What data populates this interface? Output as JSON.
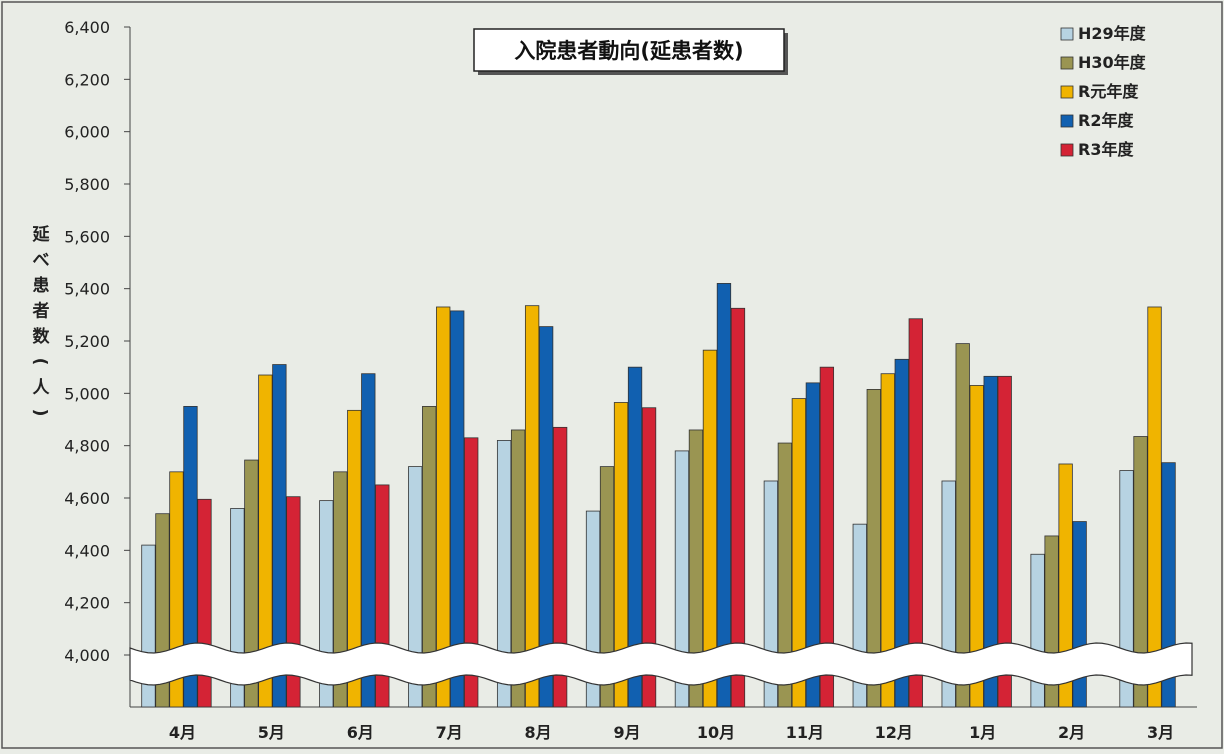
{
  "chart_data": {
    "type": "bar",
    "title": "入院患者動向(延患者数)",
    "ylabel": "延べ患者数(人)",
    "ylim": [
      4000,
      6400
    ],
    "ytick_step": 200,
    "yticks": [
      "6,400",
      "6,200",
      "6,000",
      "5,800",
      "5,600",
      "5,400",
      "5,200",
      "5,000",
      "4,800",
      "4,600",
      "4,400",
      "4,200",
      "4,000"
    ],
    "axis_break": true,
    "grid": false,
    "legend_position": "top-right",
    "categories": [
      "4月",
      "5月",
      "6月",
      "7月",
      "8月",
      "9月",
      "10月",
      "11月",
      "12月",
      "1月",
      "2月",
      "3月"
    ],
    "series": [
      {
        "name": "H29年度",
        "color": "#b7d3e2",
        "values": [
          4420,
          4560,
          4590,
          4720,
          4820,
          4550,
          4780,
          4665,
          4500,
          4665,
          4385,
          4705
        ]
      },
      {
        "name": "H30年度",
        "color": "#9a9552",
        "values": [
          4540,
          4745,
          4700,
          4950,
          4860,
          4720,
          4860,
          4810,
          5015,
          5190,
          4455,
          4835
        ]
      },
      {
        "name": "R元年度",
        "color": "#f0b400",
        "values": [
          4700,
          5070,
          4935,
          5330,
          5335,
          4965,
          5165,
          4980,
          5075,
          5030,
          4730,
          5330
        ]
      },
      {
        "name": "R2年度",
        "color": "#1160b0",
        "values": [
          4950,
          5110,
          5075,
          5315,
          5255,
          5100,
          5420,
          5040,
          5130,
          5065,
          4510,
          4735
        ]
      },
      {
        "name": "R3年度",
        "color": "#d42335",
        "values": [
          4595,
          4605,
          4650,
          4830,
          4870,
          4945,
          5325,
          5100,
          5285,
          5065,
          null,
          null
        ]
      }
    ]
  }
}
